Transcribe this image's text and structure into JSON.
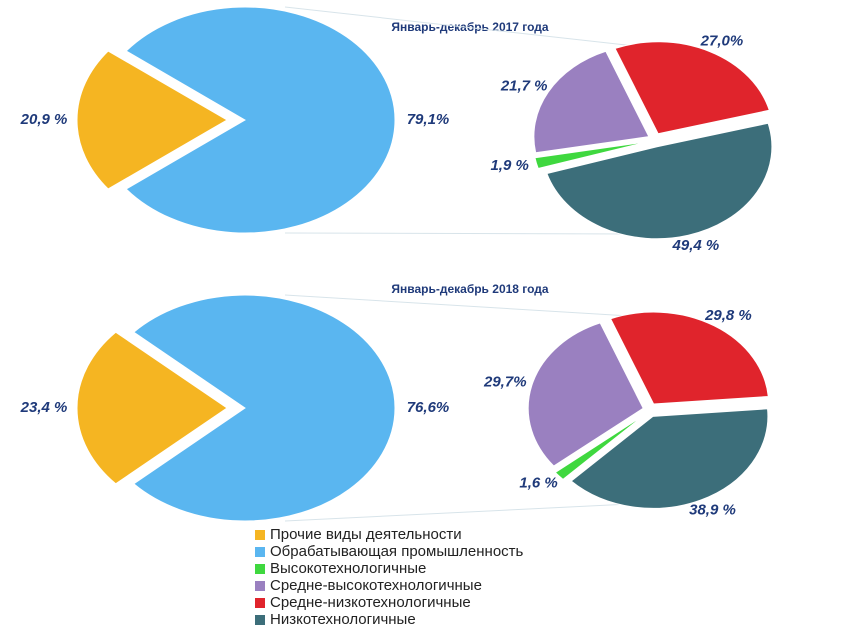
{
  "chart_data": [
    {
      "type": "pie-of-pie",
      "title": "Январь-декабрь 2017 года",
      "values": [
        20.9,
        79.1,
        1.9,
        21.7,
        27.0,
        49.4
      ],
      "value_labels": [
        "20,9 %",
        "79,1%",
        "1,9 %",
        "21,7 %",
        "27,0%",
        "49,4 %"
      ]
    },
    {
      "type": "pie-of-pie",
      "title": "Январь-декабрь 2018 года",
      "values": [
        23.4,
        76.6,
        1.6,
        29.7,
        29.8,
        38.9
      ],
      "value_labels": [
        "23,4 %",
        "76,6%",
        "1,6 %",
        "29,7%",
        "29,8 %",
        "38,9 %"
      ]
    }
  ],
  "legend": {
    "entries": [
      {
        "name": "Прочие виды деятельности",
        "color": "#f5b522"
      },
      {
        "name": "Обрабатывающая промышленность",
        "color": "#5ab6f0"
      },
      {
        "name": "Высокотехнологичные",
        "color": "#3fd83f"
      },
      {
        "name": "Средне-высокотехнологичные",
        "color": "#9a80c0"
      },
      {
        "name": "Средне-низкотехнологичные",
        "color": "#e0242c"
      },
      {
        "name": "Низкотехнологичные",
        "color": "#3c6e7a"
      }
    ]
  }
}
